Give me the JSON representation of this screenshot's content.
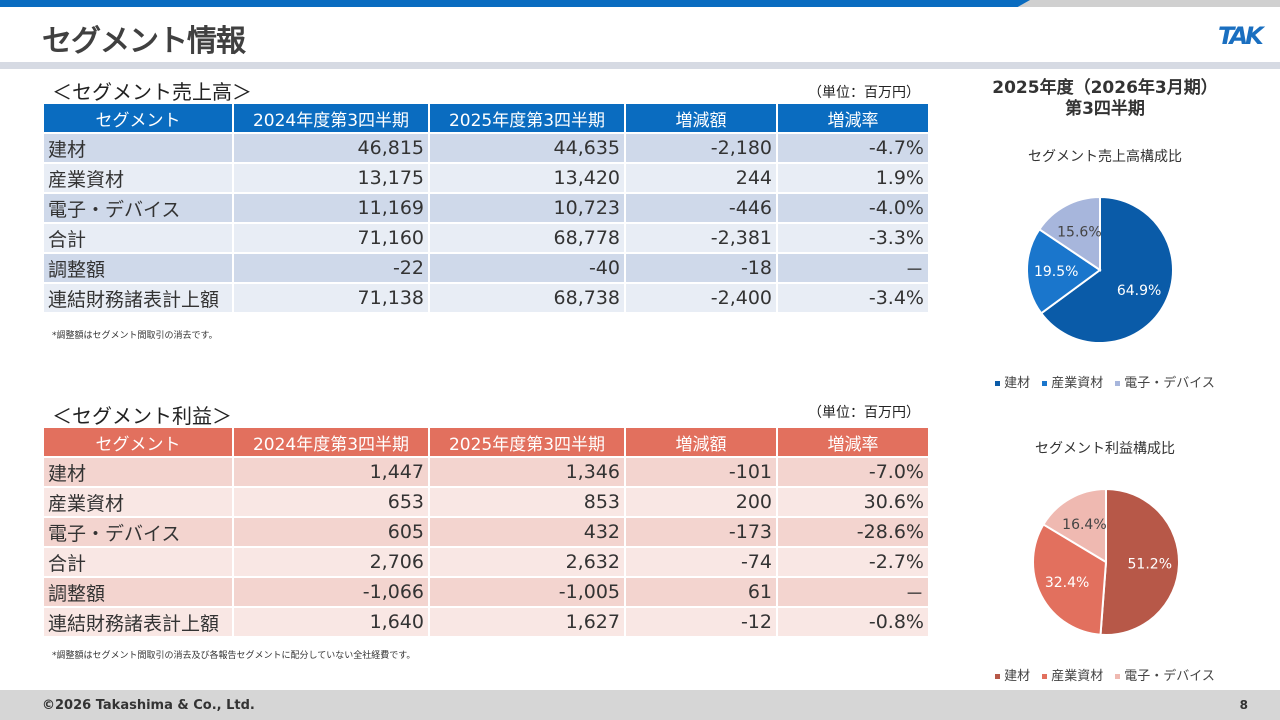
{
  "header": {
    "title": "セグメント情報",
    "logo": "TAK"
  },
  "unit": "（単位：百万円）",
  "columns": [
    "セグメント",
    "2024年度第3四半期",
    "2025年度第3四半期",
    "増減額",
    "増減率"
  ],
  "sales": {
    "title": "＜セグメント売上高＞",
    "note": "*調整額はセグメント間取引の消去です。",
    "rows": [
      [
        "建材",
        "46,815",
        "44,635",
        "-2,180",
        "-4.7%"
      ],
      [
        "産業資材",
        "13,175",
        "13,420",
        "244",
        "1.9%"
      ],
      [
        "電子・デバイス",
        "11,169",
        "10,723",
        "-446",
        "-4.0%"
      ],
      [
        "合計",
        "71,160",
        "68,778",
        "-2,381",
        "-3.3%"
      ],
      [
        "調整額",
        "-22",
        "-40",
        "-18",
        "－"
      ],
      [
        "連結財務諸表計上額",
        "71,138",
        "68,738",
        "-2,400",
        "-3.4%"
      ]
    ]
  },
  "profit": {
    "title": "＜セグメント利益＞",
    "note": "*調整額はセグメント間取引の消去及び各報告セグメントに配分していない全社経費です。",
    "rows": [
      [
        "建材",
        "1,447",
        "1,346",
        "-101",
        "-7.0%"
      ],
      [
        "産業資材",
        "653",
        "853",
        "200",
        "30.6%"
      ],
      [
        "電子・デバイス",
        "605",
        "432",
        "-173",
        "-28.6%"
      ],
      [
        "合計",
        "2,706",
        "2,632",
        "-74",
        "-2.7%"
      ],
      [
        "調整額",
        "-1,066",
        "-1,005",
        "61",
        "－"
      ],
      [
        "連結財務諸表計上額",
        "1,640",
        "1,627",
        "-12",
        "-0.8%"
      ]
    ]
  },
  "side": {
    "title1": "2025年度（2026年3月期）",
    "title2": "第3四半期"
  },
  "chart_data": [
    {
      "type": "pie",
      "title": "セグメント売上高構成比",
      "labels": [
        "建材",
        "産業資材",
        "電子・デバイス"
      ],
      "values": [
        64.9,
        19.5,
        15.6
      ],
      "value_labels": [
        "64.9%",
        "19.5%",
        "15.6%"
      ],
      "colors": [
        "#0a5ba8",
        "#1a76cc",
        "#a7b6dc"
      ],
      "label_colors": [
        "#fff",
        "#fff",
        "#444"
      ]
    },
    {
      "type": "pie",
      "title": "セグメント利益構成比",
      "labels": [
        "建材",
        "産業資材",
        "電子・デバイス"
      ],
      "values": [
        51.2,
        32.4,
        16.4
      ],
      "value_labels": [
        "51.2%",
        "32.4%",
        "16.4%"
      ],
      "colors": [
        "#b75848",
        "#e2705e",
        "#efb9b1"
      ],
      "label_colors": [
        "#fff",
        "#fff",
        "#444"
      ]
    }
  ],
  "footer": {
    "copyright": "©2026 Takashima & Co., Ltd.",
    "page": "8"
  }
}
